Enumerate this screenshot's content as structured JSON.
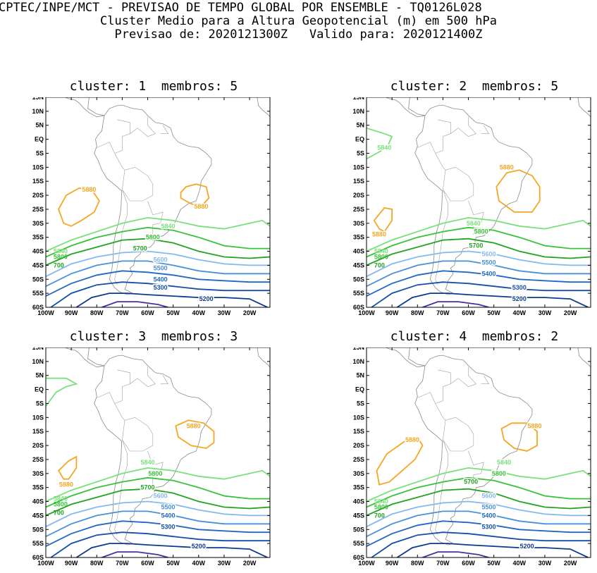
{
  "header": {
    "line1": "CPTEC/INPE/MCT - PREVISAO DE TEMPO GLOBAL POR ENSEMBLE - TQ0126L028",
    "line2": "Cluster Medio para a Altura Geopotencial (m) em 500 hPa",
    "line3": "Previsao de: 2020121300Z   Valido para: 2020121400Z"
  },
  "map": {
    "lat_labels": [
      "15N",
      "10N",
      "5N",
      "EQ",
      "5S",
      "10S",
      "15S",
      "20S",
      "25S",
      "30S",
      "35S",
      "40S",
      "45S",
      "50S",
      "55S",
      "60S"
    ],
    "lon_labels": [
      "100W",
      "90W",
      "80W",
      "70W",
      "60W",
      "50W",
      "40W",
      "30W",
      "20W"
    ],
    "lat_range": [
      -60,
      15
    ],
    "lon_range": [
      -100,
      -12
    ]
  },
  "contour_colors": {
    "5880": "#f5a623",
    "5840": "#7ae07a",
    "5800": "#37c237",
    "5700": "#22a322",
    "5600": "#84b9f0",
    "5500": "#4a90d9",
    "5400": "#2168c4",
    "5300": "#1450a8",
    "5200": "#0d3a8c",
    "5100": "#4b2da0"
  },
  "panels": [
    {
      "title": "cluster: 1  membros: 5",
      "labels": [
        {
          "text": "5880",
          "lon": -83,
          "lat": -18
        },
        {
          "text": "5880",
          "lon": -39,
          "lat": -24
        },
        {
          "text": "5840",
          "lon": -52,
          "lat": -31
        },
        {
          "text": "5800",
          "lon": -58,
          "lat": -35
        },
        {
          "text": "5700",
          "lon": -63,
          "lat": -39
        },
        {
          "text": "5600",
          "lon": -55,
          "lat": -43
        },
        {
          "text": "5500",
          "lon": -55,
          "lat": -46
        },
        {
          "text": "5400",
          "lon": -55,
          "lat": -50
        },
        {
          "text": "5300",
          "lon": -55,
          "lat": -53
        },
        {
          "text": "5200",
          "lon": -37,
          "lat": -57
        },
        {
          "text": "5840",
          "lon": -97,
          "lat": -40
        },
        {
          "text": "5800",
          "lon": -97,
          "lat": -42
        },
        {
          "text": "700",
          "lon": -97,
          "lat": -45
        }
      ]
    },
    {
      "title": "cluster: 2  membros: 5",
      "labels": [
        {
          "text": "5840",
          "lon": -93,
          "lat": -3
        },
        {
          "text": "5880",
          "lon": -45,
          "lat": -10
        },
        {
          "text": "5880",
          "lon": -95,
          "lat": -34
        },
        {
          "text": "5840",
          "lon": -58,
          "lat": -30
        },
        {
          "text": "5800",
          "lon": -55,
          "lat": -33
        },
        {
          "text": "5700",
          "lon": -57,
          "lat": -38
        },
        {
          "text": "5600",
          "lon": -52,
          "lat": -41
        },
        {
          "text": "5500",
          "lon": -52,
          "lat": -44
        },
        {
          "text": "5400",
          "lon": -52,
          "lat": -48
        },
        {
          "text": "5300",
          "lon": -40,
          "lat": -53
        },
        {
          "text": "5200",
          "lon": -40,
          "lat": -57
        },
        {
          "text": "5840",
          "lon": -97,
          "lat": -40
        },
        {
          "text": "5800",
          "lon": -97,
          "lat": -42
        },
        {
          "text": "700",
          "lon": -97,
          "lat": -45
        }
      ]
    },
    {
      "title": "cluster: 3  membros: 3",
      "labels": [
        {
          "text": "5880",
          "lon": -42,
          "lat": -13
        },
        {
          "text": "5880",
          "lon": -92,
          "lat": -34
        },
        {
          "text": "5840",
          "lon": -60,
          "lat": -26
        },
        {
          "text": "5800",
          "lon": -57,
          "lat": -30
        },
        {
          "text": "5700",
          "lon": -60,
          "lat": -35
        },
        {
          "text": "5600",
          "lon": -55,
          "lat": -38
        },
        {
          "text": "5500",
          "lon": -52,
          "lat": -42
        },
        {
          "text": "5400",
          "lon": -52,
          "lat": -45
        },
        {
          "text": "5300",
          "lon": -52,
          "lat": -49
        },
        {
          "text": "5200",
          "lon": -40,
          "lat": -56
        },
        {
          "text": "5840",
          "lon": -97,
          "lat": -39
        },
        {
          "text": "5800",
          "lon": -97,
          "lat": -41
        },
        {
          "text": "700",
          "lon": -97,
          "lat": -44
        }
      ]
    },
    {
      "title": "cluster: 4  membros: 2",
      "labels": [
        {
          "text": "5880",
          "lon": -82,
          "lat": -18
        },
        {
          "text": "5880",
          "lon": -34,
          "lat": -13
        },
        {
          "text": "5840",
          "lon": -46,
          "lat": -26
        },
        {
          "text": "5800",
          "lon": -48,
          "lat": -30
        },
        {
          "text": "5700",
          "lon": -59,
          "lat": -33
        },
        {
          "text": "5600",
          "lon": -52,
          "lat": -38
        },
        {
          "text": "5500",
          "lon": -52,
          "lat": -42
        },
        {
          "text": "5400",
          "lon": -52,
          "lat": -45
        },
        {
          "text": "5300",
          "lon": -52,
          "lat": -49
        },
        {
          "text": "5200",
          "lon": -37,
          "lat": -56
        },
        {
          "text": "5840",
          "lon": -97,
          "lat": -40
        },
        {
          "text": "5800",
          "lon": -97,
          "lat": -42
        },
        {
          "text": "700",
          "lon": -97,
          "lat": -45
        }
      ]
    }
  ]
}
